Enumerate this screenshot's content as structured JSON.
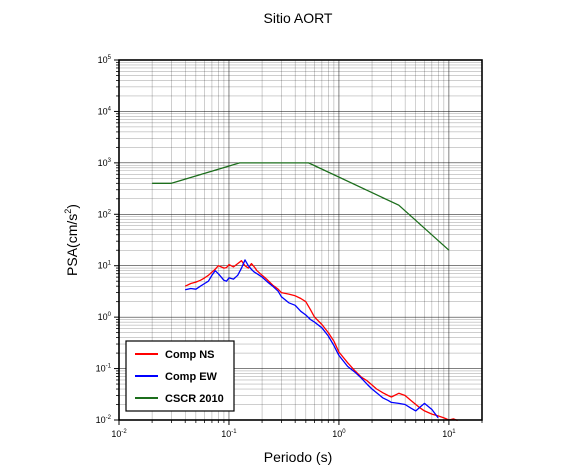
{
  "chart_data": {
    "type": "line",
    "title": "Sitio AORT",
    "xlabel": "Periodo (s)",
    "ylabel": "PSA(cm/s",
    "ylabel_sup": "2",
    "ylabel_close": ")",
    "x_scale": "log",
    "y_scale": "log",
    "xlim": [
      0.01,
      20
    ],
    "ylim": [
      0.01,
      100000
    ],
    "grid": true,
    "legend_position": "bottom-left",
    "x_tick_labels": [
      {
        "base": "10",
        "exp": "-2"
      },
      {
        "base": "10",
        "exp": "-1"
      },
      {
        "base": "10",
        "exp": "0"
      },
      {
        "base": "10",
        "exp": "1"
      }
    ],
    "y_tick_labels": [
      {
        "base": "10",
        "exp": "-2"
      },
      {
        "base": "10",
        "exp": "-1"
      },
      {
        "base": "10",
        "exp": "0"
      },
      {
        "base": "10",
        "exp": "1"
      },
      {
        "base": "10",
        "exp": "2"
      },
      {
        "base": "10",
        "exp": "3"
      },
      {
        "base": "10",
        "exp": "4"
      },
      {
        "base": "10",
        "exp": "5"
      }
    ],
    "series": [
      {
        "name": "Comp NS",
        "color": "#ff0000",
        "x": [
          0.04,
          0.045,
          0.05,
          0.055,
          0.06,
          0.065,
          0.07,
          0.075,
          0.08,
          0.085,
          0.09,
          0.095,
          0.1,
          0.11,
          0.12,
          0.13,
          0.14,
          0.15,
          0.16,
          0.17,
          0.18,
          0.2,
          0.22,
          0.25,
          0.28,
          0.3,
          0.35,
          0.4,
          0.45,
          0.5,
          0.55,
          0.6,
          0.7,
          0.8,
          0.9,
          1.0,
          1.2,
          1.4,
          1.6,
          1.8,
          2.0,
          2.2,
          2.5,
          2.8,
          3.0,
          3.5,
          4.0,
          4.5,
          5.0,
          5.5,
          6.0,
          7.0,
          8.0,
          9.0,
          10.0,
          11.0,
          12.0
        ],
        "y": [
          4.0,
          4.5,
          4.8,
          5.2,
          5.8,
          6.5,
          7.5,
          8.5,
          10.0,
          9.5,
          9.0,
          9.2,
          10.5,
          9.5,
          11.0,
          12.5,
          10.0,
          9.0,
          11.0,
          9.5,
          8.0,
          6.5,
          5.5,
          4.2,
          3.5,
          3.0,
          2.8,
          2.6,
          2.3,
          2.0,
          1.4,
          1.0,
          0.72,
          0.5,
          0.34,
          0.21,
          0.13,
          0.09,
          0.068,
          0.058,
          0.048,
          0.04,
          0.034,
          0.03,
          0.028,
          0.033,
          0.03,
          0.024,
          0.02,
          0.017,
          0.015,
          0.013,
          0.012,
          0.011,
          0.01,
          0.0105,
          0.0098
        ]
      },
      {
        "name": "Comp EW",
        "color": "#0000ff",
        "x": [
          0.04,
          0.045,
          0.05,
          0.055,
          0.06,
          0.065,
          0.07,
          0.075,
          0.08,
          0.085,
          0.09,
          0.095,
          0.1,
          0.11,
          0.12,
          0.13,
          0.14,
          0.15,
          0.16,
          0.17,
          0.18,
          0.2,
          0.22,
          0.25,
          0.28,
          0.3,
          0.35,
          0.4,
          0.45,
          0.5,
          0.55,
          0.6,
          0.7,
          0.8,
          0.9,
          1.0,
          1.2,
          1.4,
          1.6,
          1.8,
          2.0,
          2.2,
          2.5,
          2.8,
          3.0,
          3.5,
          4.0,
          4.5,
          5.0,
          5.5,
          6.0,
          7.0,
          8.0
        ],
        "y": [
          3.4,
          3.6,
          3.5,
          4.0,
          4.5,
          5.0,
          6.5,
          8.0,
          7.0,
          6.0,
          5.2,
          5.0,
          5.8,
          5.5,
          6.5,
          9.0,
          13.0,
          10.0,
          8.5,
          7.5,
          7.0,
          6.0,
          5.0,
          4.0,
          3.2,
          2.5,
          1.9,
          1.7,
          1.3,
          1.1,
          0.9,
          0.8,
          0.62,
          0.43,
          0.28,
          0.18,
          0.11,
          0.085,
          0.065,
          0.05,
          0.04,
          0.034,
          0.027,
          0.024,
          0.022,
          0.021,
          0.02,
          0.017,
          0.015,
          0.018,
          0.021,
          0.016,
          0.011
        ]
      },
      {
        "name": "CSCR 2010",
        "color": "#1c6e1c",
        "x": [
          0.02,
          0.03,
          0.125,
          0.53,
          3.5,
          10.0
        ],
        "y": [
          400,
          400,
          1000,
          1000,
          150,
          20
        ]
      }
    ]
  }
}
